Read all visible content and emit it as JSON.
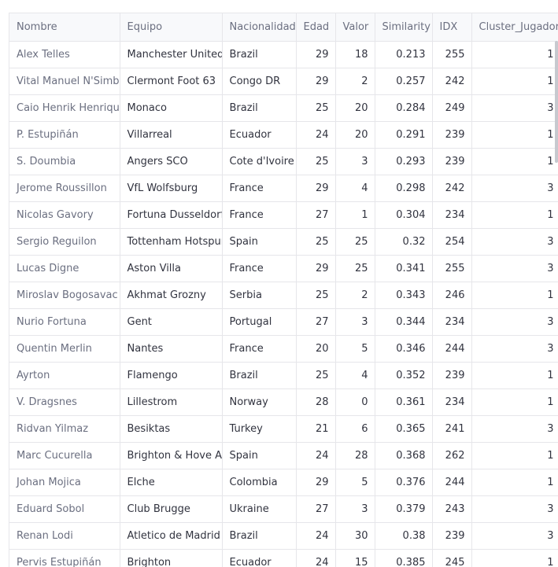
{
  "columns": [
    "Nombre",
    "Equipo",
    "Nacionalidad",
    "Edad",
    "Valor",
    "Similarity",
    "IDX",
    "Cluster_Jugador"
  ],
  "rows": [
    [
      "Alex Telles",
      "Manchester United",
      "Brazil",
      "29",
      "18",
      "0.213",
      "255",
      "1"
    ],
    [
      "Vital Manuel N'Simba",
      "Clermont Foot 63",
      "Congo DR",
      "29",
      "2",
      "0.257",
      "242",
      "1"
    ],
    [
      "Caio Henrik Henrique",
      "Monaco",
      "Brazil",
      "25",
      "20",
      "0.284",
      "249",
      "3"
    ],
    [
      "P. Estupiñán",
      "Villarreal",
      "Ecuador",
      "24",
      "20",
      "0.291",
      "239",
      "1"
    ],
    [
      "S. Doumbia",
      "Angers SCO",
      "Cote d'Ivoire",
      "25",
      "3",
      "0.293",
      "239",
      "1"
    ],
    [
      "Jerome Roussillon",
      "VfL Wolfsburg",
      "France",
      "29",
      "4",
      "0.298",
      "242",
      "3"
    ],
    [
      "Nicolas Gavory",
      "Fortuna Dusseldorf",
      "France",
      "27",
      "1",
      "0.304",
      "234",
      "1"
    ],
    [
      "Sergio Reguilon",
      "Tottenham Hotspur",
      "Spain",
      "25",
      "25",
      "0.32",
      "254",
      "3"
    ],
    [
      "Lucas Digne",
      "Aston Villa",
      "France",
      "29",
      "25",
      "0.341",
      "255",
      "3"
    ],
    [
      "Miroslav Bogosavac",
      "Akhmat Grozny",
      "Serbia",
      "25",
      "2",
      "0.343",
      "246",
      "1"
    ],
    [
      "Nurio Fortuna",
      "Gent",
      "Portugal",
      "27",
      "3",
      "0.344",
      "234",
      "3"
    ],
    [
      "Quentin Merlin",
      "Nantes",
      "France",
      "20",
      "5",
      "0.346",
      "244",
      "3"
    ],
    [
      "Ayrton",
      "Flamengo",
      "Brazil",
      "25",
      "4",
      "0.352",
      "239",
      "1"
    ],
    [
      "V. Dragsnes",
      "Lillestrom",
      "Norway",
      "28",
      "0",
      "0.361",
      "234",
      "1"
    ],
    [
      "Ridvan Yilmaz",
      "Besiktas",
      "Turkey",
      "21",
      "6",
      "0.365",
      "241",
      "3"
    ],
    [
      "Marc Cucurella",
      "Brighton & Hove Albion",
      "Spain",
      "24",
      "28",
      "0.368",
      "262",
      "1"
    ],
    [
      "Johan Mojica",
      "Elche",
      "Colombia",
      "29",
      "5",
      "0.376",
      "244",
      "1"
    ],
    [
      "Eduard Sobol",
      "Club Brugge",
      "Ukraine",
      "27",
      "3",
      "0.379",
      "243",
      "3"
    ],
    [
      "Renan Lodi",
      "Atletico de Madrid",
      "Brazil",
      "24",
      "30",
      "0.38",
      "239",
      "3"
    ],
    [
      "Pervis Estupiñán",
      "Brighton",
      "Ecuador",
      "24",
      "15",
      "0.385",
      "245",
      "1"
    ]
  ]
}
